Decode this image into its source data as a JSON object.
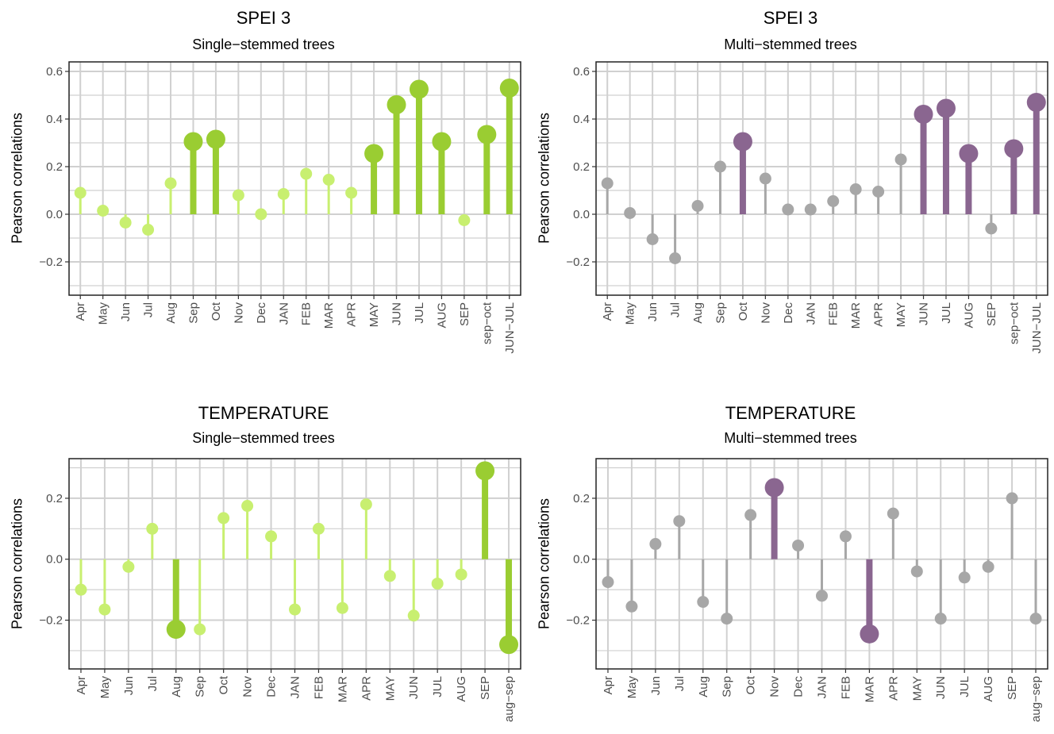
{
  "colors": {
    "single_strong": "#9acd32",
    "single_weak": "#c8ef70",
    "multi_strong": "#8a6690",
    "multi_weak": "#a7a7a7",
    "grid": "#d0d0d0"
  },
  "chart_data": [
    {
      "type": "lollipop",
      "title": "SPEI 3",
      "subtitle": "Single−stemmed trees",
      "ylabel": "Pearson correlations",
      "ylim": [
        -0.34,
        0.64
      ],
      "yticks": [
        -0.2,
        0.0,
        0.2,
        0.4,
        0.6
      ],
      "ytick_labels": [
        "−0.2",
        "0.0",
        "0.2",
        "0.4",
        "0.6"
      ],
      "grid": true,
      "categories": [
        "Apr",
        "May",
        "Jun",
        "Jul",
        "Aug",
        "Sep",
        "Oct",
        "Nov",
        "Dec",
        "JAN",
        "FEB",
        "MAR",
        "APR",
        "MAY",
        "JUN",
        "JUL",
        "AUG",
        "SEP",
        "sep−oct",
        "JUN−JUL"
      ],
      "values": [
        0.09,
        0.015,
        -0.035,
        -0.065,
        0.13,
        0.305,
        0.315,
        0.08,
        0.0,
        0.085,
        0.17,
        0.145,
        0.09,
        0.255,
        0.46,
        0.525,
        0.305,
        -0.025,
        0.335,
        0.53
      ],
      "significant": [
        false,
        false,
        false,
        false,
        false,
        true,
        true,
        false,
        false,
        false,
        false,
        false,
        false,
        true,
        true,
        true,
        true,
        false,
        true,
        true
      ],
      "palette": "single"
    },
    {
      "type": "lollipop",
      "title": "SPEI 3",
      "subtitle": "Multi−stemmed trees",
      "ylabel": "Pearson correlations",
      "ylim": [
        -0.34,
        0.64
      ],
      "yticks": [
        -0.2,
        0.0,
        0.2,
        0.4,
        0.6
      ],
      "ytick_labels": [
        "−0.2",
        "0.0",
        "0.2",
        "0.4",
        "0.6"
      ],
      "grid": true,
      "categories": [
        "Apr",
        "May",
        "Jun",
        "Jul",
        "Aug",
        "Sep",
        "Oct",
        "Nov",
        "Dec",
        "JAN",
        "FEB",
        "MAR",
        "APR",
        "MAY",
        "JUN",
        "JUL",
        "AUG",
        "SEP",
        "sep−oct",
        "JUN−JUL"
      ],
      "values": [
        0.13,
        0.005,
        -0.105,
        -0.185,
        0.035,
        0.2,
        0.305,
        0.15,
        0.02,
        0.02,
        0.055,
        0.105,
        0.095,
        0.23,
        0.42,
        0.445,
        0.255,
        -0.06,
        0.275,
        0.47
      ],
      "significant": [
        false,
        false,
        false,
        false,
        false,
        false,
        true,
        false,
        false,
        false,
        false,
        false,
        false,
        false,
        true,
        true,
        true,
        false,
        true,
        true
      ],
      "palette": "multi"
    },
    {
      "type": "lollipop",
      "title": "TEMPERATURE",
      "subtitle": "Single−stemmed trees",
      "ylabel": "Pearson correlations",
      "ylim": [
        -0.36,
        0.33
      ],
      "yticks": [
        -0.2,
        0.0,
        0.2
      ],
      "ytick_labels": [
        "−0.2",
        "0.0",
        "0.2"
      ],
      "grid": true,
      "categories": [
        "Apr",
        "May",
        "Jun",
        "Jul",
        "Aug",
        "Sep",
        "Oct",
        "Nov",
        "Dec",
        "JAN",
        "FEB",
        "MAR",
        "APR",
        "MAY",
        "JUN",
        "JUL",
        "AUG",
        "SEP",
        "aug−sep"
      ],
      "values": [
        -0.1,
        -0.165,
        -0.025,
        0.1,
        -0.23,
        -0.23,
        0.135,
        0.175,
        0.075,
        -0.165,
        0.1,
        -0.16,
        0.18,
        -0.055,
        -0.185,
        -0.08,
        -0.05,
        0.29,
        -0.28
      ],
      "significant": [
        false,
        false,
        false,
        false,
        true,
        false,
        false,
        false,
        false,
        false,
        false,
        false,
        false,
        false,
        false,
        false,
        false,
        true,
        true
      ],
      "palette": "single"
    },
    {
      "type": "lollipop",
      "title": "TEMPERATURE",
      "subtitle": "Multi−stemmed trees",
      "ylabel": "Pearson correlations",
      "ylim": [
        -0.36,
        0.33
      ],
      "yticks": [
        -0.2,
        0.0,
        0.2
      ],
      "ytick_labels": [
        "−0.2",
        "0.0",
        "0.2"
      ],
      "grid": true,
      "categories": [
        "Apr",
        "May",
        "Jun",
        "Jul",
        "Aug",
        "Sep",
        "Oct",
        "Nov",
        "Dec",
        "JAN",
        "FEB",
        "MAR",
        "APR",
        "MAY",
        "JUN",
        "JUL",
        "AUG",
        "SEP",
        "aug−sep"
      ],
      "values": [
        -0.075,
        -0.155,
        0.05,
        0.125,
        -0.14,
        -0.195,
        0.145,
        0.235,
        0.045,
        -0.12,
        0.075,
        -0.245,
        0.15,
        -0.04,
        -0.195,
        -0.06,
        -0.025,
        0.2,
        -0.195
      ],
      "significant": [
        false,
        false,
        false,
        false,
        false,
        false,
        false,
        true,
        false,
        false,
        false,
        true,
        false,
        false,
        false,
        false,
        false,
        false,
        false
      ],
      "palette": "multi"
    }
  ]
}
